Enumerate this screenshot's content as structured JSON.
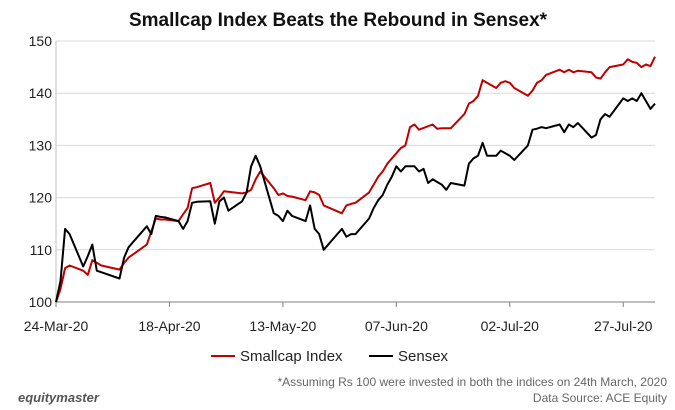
{
  "chart_data": {
    "type": "line",
    "title": "Smallcap Index Beats the Rebound in Sensex*",
    "xlabel": "",
    "ylabel": "",
    "x_range": [
      "2020-03-24",
      "2020-08-03"
    ],
    "ylim": [
      100,
      150
    ],
    "y_ticks": [
      100,
      110,
      120,
      130,
      140,
      150
    ],
    "x_ticks": [
      {
        "date": "2020-03-24",
        "label": "24-Mar-20"
      },
      {
        "date": "2020-04-18",
        "label": "18-Apr-20"
      },
      {
        "date": "2020-05-13",
        "label": "13-May-20"
      },
      {
        "date": "2020-06-07",
        "label": "07-Jun-20"
      },
      {
        "date": "2020-07-02",
        "label": "02-Jul-20"
      },
      {
        "date": "2020-07-27",
        "label": "27-Jul-20"
      }
    ],
    "grid": true,
    "legend_position": "bottom",
    "series": [
      {
        "name": "Smallcap Index",
        "color": "#c00000",
        "points": [
          [
            "2020-03-24",
            100
          ],
          [
            "2020-03-25",
            102.5
          ],
          [
            "2020-03-26",
            106.5
          ],
          [
            "2020-03-27",
            107
          ],
          [
            "2020-03-30",
            106
          ],
          [
            "2020-03-31",
            105.2
          ],
          [
            "2020-04-01",
            108
          ],
          [
            "2020-04-03",
            107
          ],
          [
            "2020-04-07",
            106.2
          ],
          [
            "2020-04-08",
            107.5
          ],
          [
            "2020-04-09",
            108.5
          ],
          [
            "2020-04-13",
            111
          ],
          [
            "2020-04-15",
            116
          ],
          [
            "2020-04-16",
            115.8
          ],
          [
            "2020-04-17",
            115.8
          ],
          [
            "2020-04-20",
            115.5
          ],
          [
            "2020-04-21",
            116.8
          ],
          [
            "2020-04-22",
            118
          ],
          [
            "2020-04-23",
            121.8
          ],
          [
            "2020-04-24",
            122
          ],
          [
            "2020-04-27",
            122.8
          ],
          [
            "2020-04-28",
            119
          ],
          [
            "2020-04-29",
            120
          ],
          [
            "2020-04-30",
            121.2
          ],
          [
            "2020-05-04",
            120.8
          ],
          [
            "2020-05-05",
            121
          ],
          [
            "2020-05-06",
            121.5
          ],
          [
            "2020-05-07",
            123.5
          ],
          [
            "2020-05-08",
            125
          ],
          [
            "2020-05-11",
            121.8
          ],
          [
            "2020-05-12",
            120.5
          ],
          [
            "2020-05-13",
            120.8
          ],
          [
            "2020-05-14",
            120.3
          ],
          [
            "2020-05-15",
            120.2
          ],
          [
            "2020-05-18",
            119.5
          ],
          [
            "2020-05-19",
            121.2
          ],
          [
            "2020-05-20",
            121
          ],
          [
            "2020-05-21",
            120.5
          ],
          [
            "2020-05-22",
            118.5
          ],
          [
            "2020-05-26",
            117
          ],
          [
            "2020-05-27",
            118.5
          ],
          [
            "2020-05-28",
            118.8
          ],
          [
            "2020-05-29",
            119
          ],
          [
            "2020-06-01",
            121
          ],
          [
            "2020-06-02",
            122.5
          ],
          [
            "2020-06-03",
            124
          ],
          [
            "2020-06-04",
            125
          ],
          [
            "2020-06-05",
            126.5
          ],
          [
            "2020-06-08",
            129.5
          ],
          [
            "2020-06-09",
            130
          ],
          [
            "2020-06-10",
            133.5
          ],
          [
            "2020-06-11",
            134
          ],
          [
            "2020-06-12",
            133
          ],
          [
            "2020-06-15",
            134
          ],
          [
            "2020-06-16",
            133.2
          ],
          [
            "2020-06-17",
            133.3
          ],
          [
            "2020-06-18",
            133.3
          ],
          [
            "2020-06-19",
            133.3
          ],
          [
            "2020-06-22",
            136
          ],
          [
            "2020-06-23",
            138
          ],
          [
            "2020-06-24",
            138.5
          ],
          [
            "2020-06-25",
            139.5
          ],
          [
            "2020-06-26",
            142.5
          ],
          [
            "2020-06-29",
            141
          ],
          [
            "2020-06-30",
            142
          ],
          [
            "2020-07-01",
            142.3
          ],
          [
            "2020-07-02",
            142
          ],
          [
            "2020-07-03",
            141
          ],
          [
            "2020-07-06",
            139.5
          ],
          [
            "2020-07-07",
            140.5
          ],
          [
            "2020-07-08",
            142
          ],
          [
            "2020-07-09",
            142.5
          ],
          [
            "2020-07-10",
            143.5
          ],
          [
            "2020-07-13",
            144.5
          ],
          [
            "2020-07-14",
            144
          ],
          [
            "2020-07-15",
            144.5
          ],
          [
            "2020-07-16",
            144
          ],
          [
            "2020-07-17",
            144.3
          ],
          [
            "2020-07-20",
            144
          ],
          [
            "2020-07-21",
            143
          ],
          [
            "2020-07-22",
            142.8
          ],
          [
            "2020-07-23",
            144
          ],
          [
            "2020-07-24",
            145
          ],
          [
            "2020-07-27",
            145.5
          ],
          [
            "2020-07-28",
            146.5
          ],
          [
            "2020-07-29",
            146
          ],
          [
            "2020-07-30",
            145.8
          ],
          [
            "2020-07-31",
            145
          ],
          [
            "2020-08-01",
            145.5
          ],
          [
            "2020-08-02",
            145.2
          ],
          [
            "2020-08-03",
            147
          ]
        ]
      },
      {
        "name": "Sensex",
        "color": "#000000",
        "points": [
          [
            "2020-03-24",
            100
          ],
          [
            "2020-03-25",
            104
          ],
          [
            "2020-03-26",
            114
          ],
          [
            "2020-03-27",
            113
          ],
          [
            "2020-03-30",
            106.8
          ],
          [
            "2020-03-31",
            108.8
          ],
          [
            "2020-04-01",
            111
          ],
          [
            "2020-04-02",
            106
          ],
          [
            "2020-04-07",
            104.5
          ],
          [
            "2020-04-08",
            108.5
          ],
          [
            "2020-04-09",
            110.5
          ],
          [
            "2020-04-13",
            114.5
          ],
          [
            "2020-04-14",
            113
          ],
          [
            "2020-04-15",
            116.5
          ],
          [
            "2020-04-16",
            116.3
          ],
          [
            "2020-04-17",
            116.2
          ],
          [
            "2020-04-20",
            115.5
          ],
          [
            "2020-04-21",
            114
          ],
          [
            "2020-04-22",
            115.5
          ],
          [
            "2020-04-23",
            119
          ],
          [
            "2020-04-24",
            119.2
          ],
          [
            "2020-04-27",
            119.3
          ],
          [
            "2020-04-28",
            115
          ],
          [
            "2020-04-29",
            119.3
          ],
          [
            "2020-04-30",
            120
          ],
          [
            "2020-05-01",
            117.5
          ],
          [
            "2020-05-04",
            119.3
          ],
          [
            "2020-05-05",
            121
          ],
          [
            "2020-05-06",
            126
          ],
          [
            "2020-05-07",
            128
          ],
          [
            "2020-05-08",
            126
          ],
          [
            "2020-05-11",
            117
          ],
          [
            "2020-05-12",
            116.5
          ],
          [
            "2020-05-13",
            115.5
          ],
          [
            "2020-05-14",
            117.5
          ],
          [
            "2020-05-15",
            116.5
          ],
          [
            "2020-05-18",
            115.5
          ],
          [
            "2020-05-19",
            118.5
          ],
          [
            "2020-05-20",
            114
          ],
          [
            "2020-05-21",
            113
          ],
          [
            "2020-05-22",
            110
          ],
          [
            "2020-05-25",
            113
          ],
          [
            "2020-05-26",
            114
          ],
          [
            "2020-05-27",
            112.5
          ],
          [
            "2020-05-28",
            113
          ],
          [
            "2020-05-29",
            113
          ],
          [
            "2020-06-01",
            116
          ],
          [
            "2020-06-02",
            118
          ],
          [
            "2020-06-03",
            119.5
          ],
          [
            "2020-06-04",
            120.5
          ],
          [
            "2020-06-05",
            122.5
          ],
          [
            "2020-06-06",
            124
          ],
          [
            "2020-06-07",
            126
          ],
          [
            "2020-06-08",
            125
          ],
          [
            "2020-06-09",
            126
          ],
          [
            "2020-06-10",
            126
          ],
          [
            "2020-06-11",
            126
          ],
          [
            "2020-06-12",
            125
          ],
          [
            "2020-06-13",
            125.5
          ],
          [
            "2020-06-14",
            122.8
          ],
          [
            "2020-06-15",
            123.5
          ],
          [
            "2020-06-17",
            122.5
          ],
          [
            "2020-06-18",
            121.5
          ],
          [
            "2020-06-19",
            122.8
          ],
          [
            "2020-06-22",
            122.3
          ],
          [
            "2020-06-23",
            126.5
          ],
          [
            "2020-06-24",
            127.5
          ],
          [
            "2020-06-25",
            128
          ],
          [
            "2020-06-26",
            130.5
          ],
          [
            "2020-06-27",
            128
          ],
          [
            "2020-06-29",
            128
          ],
          [
            "2020-06-30",
            129
          ],
          [
            "2020-07-01",
            128.5
          ],
          [
            "2020-07-02",
            128
          ],
          [
            "2020-07-03",
            127.2
          ],
          [
            "2020-07-06",
            130
          ],
          [
            "2020-07-07",
            133
          ],
          [
            "2020-07-08",
            133.2
          ],
          [
            "2020-07-09",
            133.5
          ],
          [
            "2020-07-10",
            133.3
          ],
          [
            "2020-07-13",
            134
          ],
          [
            "2020-07-14",
            132.5
          ],
          [
            "2020-07-15",
            134
          ],
          [
            "2020-07-16",
            133.5
          ],
          [
            "2020-07-17",
            134.3
          ],
          [
            "2020-07-20",
            131.5
          ],
          [
            "2020-07-21",
            132
          ],
          [
            "2020-07-22",
            135
          ],
          [
            "2020-07-23",
            136
          ],
          [
            "2020-07-24",
            135.5
          ],
          [
            "2020-07-27",
            139
          ],
          [
            "2020-07-28",
            138.5
          ],
          [
            "2020-07-29",
            139
          ],
          [
            "2020-07-30",
            138.5
          ],
          [
            "2020-07-31",
            140
          ],
          [
            "2020-08-01",
            138.5
          ],
          [
            "2020-08-02",
            137
          ],
          [
            "2020-08-03",
            138
          ]
        ]
      }
    ]
  },
  "footnote": "*Assuming Rs 100 were invested in both the indices on  24th March, 2020",
  "source": "Data Source: ACE Equity",
  "brand": "equitymaster"
}
